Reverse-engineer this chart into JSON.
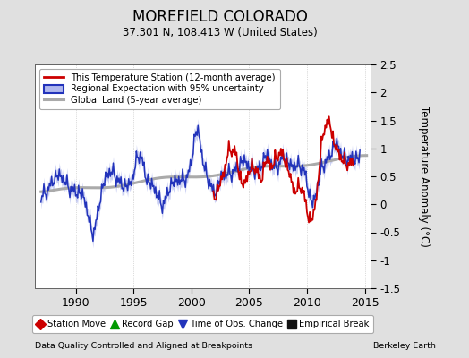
{
  "title": "MOREFIELD COLORADO",
  "subtitle": "37.301 N, 108.413 W (United States)",
  "ylabel": "Temperature Anomaly (°C)",
  "xlabel_left": "Data Quality Controlled and Aligned at Breakpoints",
  "xlabel_right": "Berkeley Earth",
  "ylim": [
    -1.5,
    2.5
  ],
  "xlim": [
    1986.5,
    2015.5
  ],
  "xticks": [
    1990,
    1995,
    2000,
    2005,
    2010,
    2015
  ],
  "yticks": [
    -1.5,
    -1.0,
    -0.5,
    0.0,
    0.5,
    1.0,
    1.5,
    2.0,
    2.5
  ],
  "bg_color": "#e0e0e0",
  "plot_bg_color": "#ffffff",
  "grid_color": "#bbbbbb",
  "red_color": "#cc0000",
  "blue_color": "#2233bb",
  "blue_fill_color": "#b0b8ee",
  "gray_color": "#aaaaaa",
  "legend1_labels": [
    "This Temperature Station (12-month average)",
    "Regional Expectation with 95% uncertainty",
    "Global Land (5-year average)"
  ],
  "legend2_labels": [
    "Station Move",
    "Record Gap",
    "Time of Obs. Change",
    "Empirical Break"
  ],
  "legend2_colors": [
    "#cc0000",
    "#009900",
    "#2233bb",
    "#111111"
  ],
  "legend2_markers": [
    "D",
    "^",
    "v",
    "s"
  ]
}
